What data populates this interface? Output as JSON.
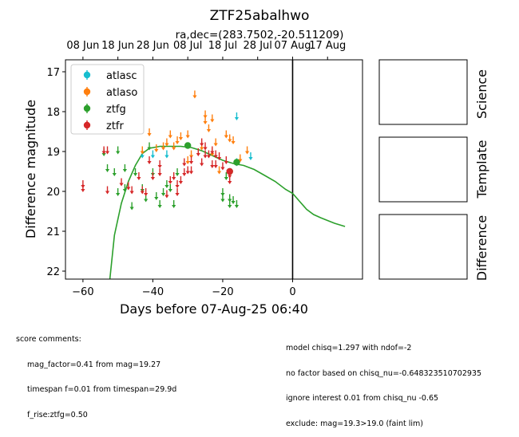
{
  "chart_data": {
    "type": "scatter",
    "title": "ZTF25abalhwo",
    "subtitle": "ra,dec=(283.7502,-20.511209)",
    "xlabel": "Days before 07-Aug-25 06:40",
    "ylabel": "Difference magnitude",
    "xlim": [
      -65,
      20
    ],
    "ylim": [
      22.2,
      16.7
    ],
    "y_inverted": true,
    "x_ticks": [
      -60,
      -40,
      -20,
      0
    ],
    "x_tick_labels": [
      "−60",
      "−40",
      "−20",
      "0"
    ],
    "y_ticks": [
      17,
      18,
      19,
      20,
      21,
      22
    ],
    "y_tick_labels": [
      "17",
      "18",
      "19",
      "20",
      "21",
      "22"
    ],
    "top_axis_ticks": [
      -60,
      -50,
      -40,
      -30,
      -20,
      -10,
      0,
      10
    ],
    "top_axis_labels": [
      "08 Jun",
      "18 Jun",
      "28 Jun",
      "08 Jul",
      "18 Jul",
      "28 Jul",
      "07 Aug",
      "17 Aug"
    ],
    "vertical_line_x": 0,
    "legend_position": "top-left",
    "grid": false,
    "colors": {
      "atlasc": "#17becf",
      "atlaso": "#ff7f0e",
      "ztfg": "#2ca02c",
      "ztfr": "#d62728",
      "model": "#2ca02c"
    },
    "series": [
      {
        "name": "atlasc",
        "color": "#17becf",
        "marker": "upper-limit-arrow",
        "points": [
          [
            -43,
            19.05
          ],
          [
            -40,
            19.05
          ],
          [
            -36,
            19.05
          ],
          [
            -16,
            18.1
          ],
          [
            -16,
            19.25
          ],
          [
            -12,
            19.1
          ]
        ]
      },
      {
        "name": "atlaso",
        "color": "#ff7f0e",
        "marker": "upper-limit-arrow",
        "points": [
          [
            -43,
            18.95
          ],
          [
            -41,
            18.5
          ],
          [
            -39,
            18.9
          ],
          [
            -37,
            18.85
          ],
          [
            -36,
            18.75
          ],
          [
            -35,
            18.55
          ],
          [
            -34,
            18.85
          ],
          [
            -33,
            18.7
          ],
          [
            -32,
            18.6
          ],
          [
            -30,
            18.55
          ],
          [
            -30,
            19.2
          ],
          [
            -29,
            19.05
          ],
          [
            -28,
            17.55
          ],
          [
            -26,
            18.85
          ],
          [
            -25,
            18.05
          ],
          [
            -25,
            18.2
          ],
          [
            -24,
            18.4
          ],
          [
            -23,
            18.15
          ],
          [
            -23,
            19.0
          ],
          [
            -22,
            18.75
          ],
          [
            -21,
            19.45
          ],
          [
            -19,
            18.55
          ],
          [
            -18,
            18.65
          ],
          [
            -17,
            18.7
          ],
          [
            -15,
            19.15
          ],
          [
            -13,
            18.95
          ]
        ]
      },
      {
        "name": "ztfg",
        "color": "#2ca02c",
        "marker": "upper-limit-arrow",
        "points": [
          [
            -54,
            19.0
          ],
          [
            -53,
            19.4
          ],
          [
            -51,
            19.5
          ],
          [
            -50,
            18.95
          ],
          [
            -50,
            20.0
          ],
          [
            -48,
            19.9
          ],
          [
            -48,
            19.4
          ],
          [
            -46,
            20.35
          ],
          [
            -45,
            19.5
          ],
          [
            -43,
            19.9
          ],
          [
            -42,
            20.15
          ],
          [
            -41,
            18.85
          ],
          [
            -40,
            19.5
          ],
          [
            -39,
            20.1
          ],
          [
            -38,
            20.3
          ],
          [
            -37,
            20.0
          ],
          [
            -36,
            19.8
          ],
          [
            -35,
            19.9
          ],
          [
            -34,
            20.3
          ],
          [
            -33,
            19.5
          ],
          [
            -20,
            20.0
          ],
          [
            -20,
            20.15
          ],
          [
            -19,
            19.6
          ],
          [
            -18,
            20.15
          ],
          [
            -18,
            20.3
          ],
          [
            -17,
            20.2
          ],
          [
            -16,
            20.3
          ]
        ]
      },
      {
        "name": "ztfg_detections",
        "color": "#2ca02c",
        "marker": "dot",
        "points": [
          [
            -30,
            18.85
          ],
          [
            -18,
            19.5
          ],
          [
            -16,
            19.27
          ]
        ]
      },
      {
        "name": "ztfr",
        "color": "#d62728",
        "marker": "upper-limit-arrow",
        "points": [
          [
            -60,
            19.8
          ],
          [
            -60,
            19.9
          ],
          [
            -54,
            18.95
          ],
          [
            -53,
            18.95
          ],
          [
            -53,
            19.95
          ],
          [
            -49,
            19.75
          ],
          [
            -47,
            19.85
          ],
          [
            -46,
            19.95
          ],
          [
            -44,
            19.6
          ],
          [
            -43,
            19.95
          ],
          [
            -42,
            20.0
          ],
          [
            -41,
            19.2
          ],
          [
            -40,
            19.6
          ],
          [
            -38,
            19.3
          ],
          [
            -38,
            19.5
          ],
          [
            -36,
            20.05
          ],
          [
            -35,
            19.7
          ],
          [
            -34,
            19.6
          ],
          [
            -33,
            19.8
          ],
          [
            -33,
            20.0
          ],
          [
            -32,
            19.7
          ],
          [
            -31,
            19.5
          ],
          [
            -31,
            19.25
          ],
          [
            -30,
            19.45
          ],
          [
            -29,
            19.45
          ],
          [
            -29,
            19.2
          ],
          [
            -27,
            19.0
          ],
          [
            -26,
            18.75
          ],
          [
            -26,
            19.25
          ],
          [
            -25,
            18.85
          ],
          [
            -25,
            19.05
          ],
          [
            -24,
            19.05
          ],
          [
            -23,
            19.3
          ],
          [
            -23,
            18.95
          ],
          [
            -22,
            19.05
          ],
          [
            -22,
            19.3
          ],
          [
            -21,
            19.1
          ],
          [
            -20,
            19.35
          ],
          [
            -19,
            19.2
          ],
          [
            -18,
            19.55
          ],
          [
            -18,
            19.7
          ]
        ]
      },
      {
        "name": "ztfr_detections",
        "color": "#d62728",
        "marker": "dot",
        "points": [
          [
            -18,
            19.5
          ]
        ]
      }
    ],
    "model_curve": {
      "color": "#2ca02c",
      "points": [
        [
          -52.3,
          22.2
        ],
        [
          -51,
          21.1
        ],
        [
          -49,
          20.3
        ],
        [
          -47,
          19.75
        ],
        [
          -45,
          19.35
        ],
        [
          -43,
          19.05
        ],
        [
          -41,
          18.92
        ],
        [
          -38,
          18.87
        ],
        [
          -35,
          18.87
        ],
        [
          -32,
          18.87
        ],
        [
          -29,
          18.9
        ],
        [
          -26,
          18.98
        ],
        [
          -23,
          19.1
        ],
        [
          -20,
          19.22
        ],
        [
          -17,
          19.3
        ],
        [
          -14,
          19.35
        ],
        [
          -11,
          19.45
        ],
        [
          -8,
          19.6
        ],
        [
          -5,
          19.75
        ],
        [
          -2,
          19.95
        ],
        [
          0,
          20.05
        ],
        [
          2,
          20.25
        ],
        [
          4,
          20.45
        ],
        [
          6,
          20.58
        ],
        [
          8,
          20.66
        ],
        [
          10,
          20.73
        ],
        [
          12,
          20.8
        ],
        [
          15,
          20.88
        ]
      ]
    }
  },
  "legend": [
    {
      "label": "atlasc",
      "color": "#17becf"
    },
    {
      "label": "atlaso",
      "color": "#ff7f0e"
    },
    {
      "label": "ztfg",
      "color": "#2ca02c"
    },
    {
      "label": "ztfr",
      "color": "#d62728"
    }
  ],
  "side_panels": [
    "Science",
    "Template",
    "Difference"
  ],
  "score_comments": {
    "heading": "score comments:",
    "lines": [
      "mag_factor=0.41 from mag=19.27",
      "timespan f=0.01 from timespan=29.9d",
      "f_rise:ztfg=0.50"
    ]
  },
  "model_comments": [
    "model chisq=1.297 with ndof=-2",
    "no factor based on chisq_nu=-0.648323510702935",
    "ignore interest 0.01 from chisq_nu -0.65",
    "exclude: mag=19.3>19.0 (faint lim)"
  ]
}
